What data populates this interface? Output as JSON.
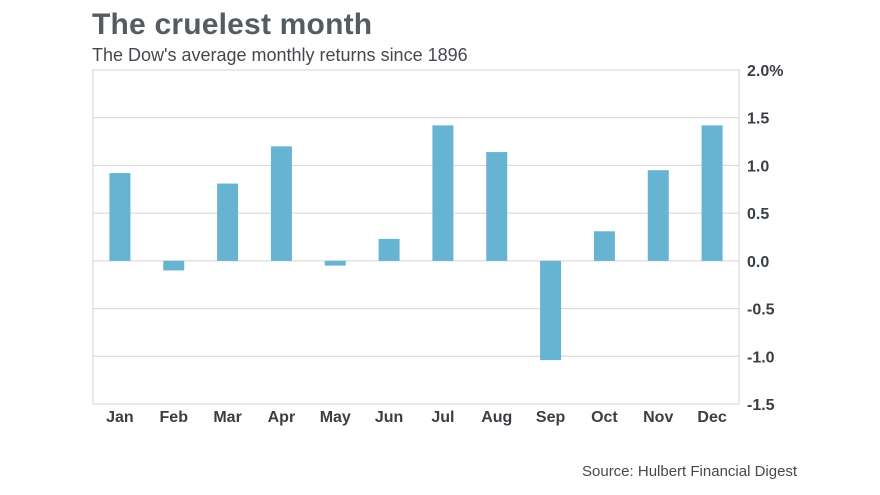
{
  "header": {
    "title": "The cruelest month",
    "subtitle": "The Dow's average monthly returns since 1896"
  },
  "footer": {
    "source": "Source: Hulbert Financial Digest"
  },
  "colors": {
    "bar": "#66b3d2",
    "grid": "#d4d4d4",
    "text": "#3a3f44"
  },
  "chart_data": {
    "type": "bar",
    "title": "The cruelest month",
    "subtitle": "The Dow's average monthly returns since 1896",
    "xlabel": "",
    "ylabel": "",
    "categories": [
      "Jan",
      "Feb",
      "Mar",
      "Apr",
      "May",
      "Jun",
      "Jul",
      "Aug",
      "Sep",
      "Oct",
      "Nov",
      "Dec"
    ],
    "values": [
      0.92,
      -0.1,
      0.81,
      1.2,
      -0.05,
      0.23,
      1.42,
      1.14,
      -1.04,
      0.31,
      0.95,
      1.42
    ],
    "ylim": [
      -1.5,
      2.0
    ],
    "yticks": [
      2.0,
      1.5,
      1.0,
      0.5,
      0.0,
      -0.5,
      -1.0,
      -1.5
    ],
    "ytick_labels": [
      "2.0%",
      "1.5",
      "1.0",
      "0.5",
      "0.0",
      "-0.5",
      "-1.0",
      "-1.5"
    ],
    "grid": true,
    "y_axis_side": "right",
    "legend": "none"
  }
}
